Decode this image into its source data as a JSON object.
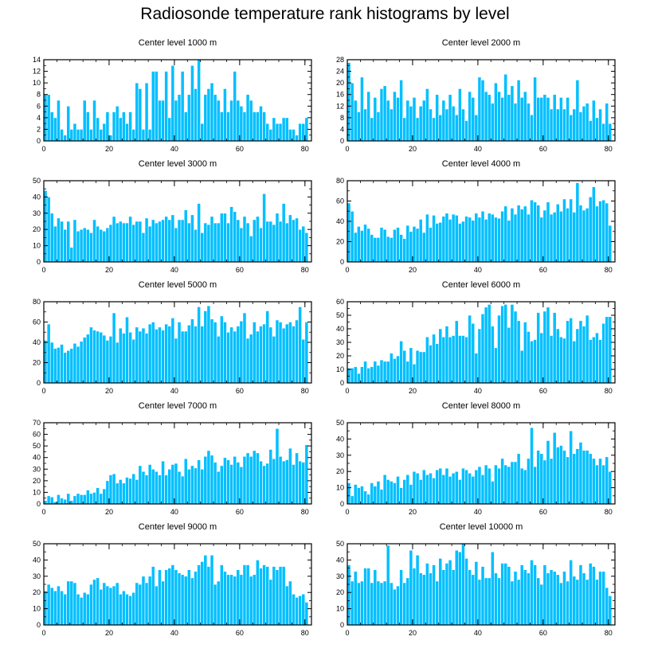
{
  "title": "Radiosonde temperature rank histograms by level",
  "colors": {
    "bar": "#00BFFF",
    "bar_edge": "#ffffff",
    "axis": "#000000"
  },
  "chart_data": [
    {
      "type": "bar",
      "title": "Center level 1000 m",
      "xlim": [
        0,
        82
      ],
      "ylim": [
        0,
        14
      ],
      "xticks": [
        0,
        20,
        40,
        60,
        80
      ],
      "yticks": [
        0,
        2,
        4,
        6,
        8,
        10,
        12,
        14
      ],
      "values": [
        8,
        8,
        5,
        4,
        7,
        2,
        1,
        6,
        2,
        3,
        2,
        2,
        7,
        5,
        2,
        7,
        4,
        2,
        3,
        5,
        1,
        5,
        6,
        4,
        5,
        3,
        5,
        2,
        10,
        9,
        2,
        10,
        2,
        12,
        12,
        7,
        7,
        12,
        4,
        13,
        7,
        8,
        12,
        5,
        8,
        13,
        9,
        14,
        3,
        8,
        9,
        10,
        8,
        7,
        5,
        9,
        5,
        7,
        12,
        7,
        6,
        5,
        8,
        7,
        5,
        5,
        6,
        5,
        3,
        2,
        4,
        3,
        3,
        4,
        4,
        2,
        2,
        1,
        3,
        3,
        4
      ]
    },
    {
      "type": "bar",
      "title": "Center level 2000 m",
      "xlim": [
        0,
        82
      ],
      "ylim": [
        0,
        28
      ],
      "xticks": [
        0,
        20,
        40,
        60,
        80
      ],
      "yticks": [
        0,
        4,
        8,
        12,
        16,
        20,
        24,
        28
      ],
      "values": [
        27,
        20,
        14,
        10,
        22,
        11,
        17,
        8,
        15,
        10,
        18,
        19,
        14,
        11,
        17,
        15,
        21,
        8,
        14,
        12,
        15,
        8,
        12,
        14,
        18,
        11,
        8,
        16,
        9,
        14,
        11,
        16,
        12,
        9,
        18,
        11,
        7,
        17,
        15,
        9,
        22,
        21,
        17,
        16,
        13,
        20,
        17,
        15,
        23,
        16,
        19,
        13,
        21,
        15,
        17,
        13,
        9,
        22,
        15,
        15,
        16,
        15,
        11,
        16,
        11,
        15,
        11,
        15,
        9,
        11,
        21,
        10,
        12,
        13,
        7,
        14,
        8,
        11,
        6,
        13,
        6
      ]
    },
    {
      "type": "bar",
      "title": "Center level 3000 m",
      "xlim": [
        0,
        82
      ],
      "ylim": [
        0,
        50
      ],
      "xticks": [
        0,
        20,
        40,
        60,
        80
      ],
      "yticks": [
        0,
        10,
        20,
        30,
        40,
        50
      ],
      "values": [
        44,
        40,
        30,
        22,
        27,
        25,
        20,
        25,
        9,
        26,
        19,
        20,
        21,
        20,
        18,
        26,
        22,
        20,
        19,
        21,
        23,
        28,
        24,
        25,
        24,
        24,
        28,
        23,
        25,
        25,
        18,
        27,
        22,
        26,
        24,
        25,
        26,
        28,
        26,
        29,
        21,
        26,
        26,
        32,
        24,
        29,
        20,
        36,
        18,
        24,
        23,
        28,
        24,
        24,
        30,
        30,
        24,
        34,
        31,
        26,
        21,
        28,
        24,
        16,
        26,
        28,
        21,
        42,
        25,
        25,
        23,
        30,
        25,
        36,
        24,
        29,
        26,
        27,
        20,
        22,
        18
      ]
    },
    {
      "type": "bar",
      "title": "Center level 4000 m",
      "xlim": [
        0,
        82
      ],
      "ylim": [
        0,
        80
      ],
      "xticks": [
        0,
        20,
        40,
        60,
        80
      ],
      "yticks": [
        0,
        20,
        40,
        60,
        80
      ],
      "values": [
        58,
        50,
        29,
        35,
        31,
        37,
        33,
        27,
        24,
        24,
        34,
        32,
        25,
        24,
        32,
        34,
        27,
        23,
        36,
        30,
        35,
        33,
        42,
        29,
        47,
        34,
        46,
        38,
        39,
        45,
        48,
        42,
        47,
        46,
        38,
        40,
        45,
        44,
        41,
        48,
        44,
        50,
        42,
        48,
        47,
        44,
        43,
        50,
        55,
        41,
        53,
        47,
        56,
        52,
        55,
        47,
        61,
        59,
        56,
        44,
        51,
        59,
        47,
        49,
        57,
        50,
        62,
        53,
        62,
        49,
        78,
        56,
        51,
        53,
        64,
        74,
        55,
        60,
        61,
        58,
        36
      ]
    },
    {
      "type": "bar",
      "title": "Center level 5000 m",
      "xlim": [
        0,
        82
      ],
      "ylim": [
        0,
        80
      ],
      "xticks": [
        0,
        20,
        40,
        60,
        80
      ],
      "yticks": [
        0,
        20,
        40,
        60,
        80
      ],
      "values": [
        42,
        58,
        40,
        34,
        35,
        38,
        30,
        32,
        34,
        39,
        36,
        41,
        45,
        48,
        55,
        52,
        51,
        50,
        47,
        42,
        46,
        69,
        40,
        54,
        49,
        65,
        50,
        43,
        55,
        51,
        54,
        49,
        58,
        60,
        53,
        55,
        52,
        58,
        56,
        64,
        44,
        60,
        51,
        51,
        57,
        63,
        56,
        75,
        56,
        71,
        76,
        63,
        60,
        46,
        66,
        60,
        50,
        55,
        51,
        56,
        61,
        69,
        44,
        48,
        60,
        51,
        56,
        58,
        71,
        55,
        46,
        62,
        60,
        54,
        58,
        60,
        56,
        62,
        75,
        43,
        60
      ]
    },
    {
      "type": "bar",
      "title": "Center level 6000 m",
      "xlim": [
        0,
        82
      ],
      "ylim": [
        0,
        60
      ],
      "xticks": [
        0,
        20,
        40,
        60,
        80
      ],
      "yticks": [
        0,
        10,
        20,
        30,
        40,
        50,
        60
      ],
      "values": [
        11,
        11,
        12,
        7,
        12,
        16,
        11,
        12,
        16,
        13,
        17,
        16,
        16,
        22,
        18,
        20,
        31,
        24,
        16,
        26,
        14,
        24,
        23,
        23,
        34,
        28,
        36,
        29,
        40,
        34,
        42,
        34,
        35,
        46,
        35,
        35,
        34,
        50,
        44,
        22,
        40,
        51,
        56,
        58,
        42,
        26,
        50,
        57,
        58,
        41,
        58,
        53,
        46,
        24,
        45,
        38,
        31,
        32,
        52,
        37,
        53,
        56,
        35,
        52,
        40,
        34,
        33,
        46,
        48,
        31,
        40,
        46,
        42,
        50,
        32,
        34,
        37,
        32,
        44,
        49,
        49
      ]
    },
    {
      "type": "bar",
      "title": "Center level 7000 m",
      "xlim": [
        0,
        82
      ],
      "ylim": [
        0,
        70
      ],
      "xticks": [
        0,
        20,
        40,
        60,
        80
      ],
      "yticks": [
        0,
        10,
        20,
        30,
        40,
        50,
        60,
        70
      ],
      "values": [
        3,
        7,
        6,
        2,
        8,
        5,
        4,
        9,
        3,
        7,
        9,
        8,
        8,
        12,
        9,
        10,
        14,
        9,
        13,
        20,
        25,
        26,
        18,
        21,
        18,
        23,
        22,
        26,
        21,
        33,
        28,
        25,
        34,
        30,
        28,
        25,
        37,
        25,
        30,
        34,
        35,
        28,
        24,
        39,
        30,
        33,
        31,
        38,
        30,
        41,
        46,
        42,
        36,
        28,
        33,
        40,
        38,
        34,
        41,
        36,
        32,
        41,
        44,
        41,
        46,
        44,
        37,
        33,
        35,
        47,
        39,
        65,
        41,
        37,
        38,
        48,
        34,
        44,
        37,
        36,
        51
      ]
    },
    {
      "type": "bar",
      "title": "Center level 8000 m",
      "xlim": [
        0,
        82
      ],
      "ylim": [
        0,
        50
      ],
      "xticks": [
        0,
        20,
        40,
        60,
        80
      ],
      "yticks": [
        0,
        10,
        20,
        30,
        40,
        50
      ],
      "values": [
        13,
        5,
        12,
        10,
        11,
        8,
        6,
        13,
        11,
        14,
        9,
        18,
        15,
        14,
        13,
        17,
        10,
        15,
        18,
        12,
        20,
        19,
        15,
        21,
        18,
        19,
        16,
        21,
        22,
        18,
        22,
        17,
        19,
        20,
        15,
        22,
        21,
        19,
        17,
        21,
        23,
        18,
        24,
        22,
        14,
        24,
        22,
        28,
        24,
        23,
        26,
        26,
        31,
        22,
        21,
        28,
        47,
        23,
        33,
        31,
        27,
        39,
        28,
        44,
        35,
        36,
        33,
        29,
        45,
        31,
        34,
        38,
        33,
        33,
        31,
        28,
        24,
        28,
        24,
        29,
        20
      ]
    },
    {
      "type": "bar",
      "title": "Center level 9000 m",
      "xlim": [
        0,
        82
      ],
      "ylim": [
        0,
        50
      ],
      "xticks": [
        0,
        20,
        40,
        60,
        80
      ],
      "yticks": [
        0,
        10,
        20,
        30,
        40,
        50
      ],
      "values": [
        21,
        25,
        23,
        21,
        24,
        21,
        19,
        27,
        27,
        26,
        19,
        17,
        20,
        19,
        25,
        28,
        29,
        22,
        26,
        24,
        23,
        24,
        26,
        19,
        21,
        19,
        18,
        20,
        26,
        25,
        30,
        26,
        30,
        36,
        24,
        34,
        27,
        34,
        35,
        37,
        34,
        32,
        31,
        30,
        34,
        29,
        33,
        37,
        39,
        43,
        36,
        43,
        25,
        27,
        37,
        33,
        31,
        31,
        30,
        34,
        31,
        37,
        37,
        30,
        31,
        40,
        35,
        37,
        36,
        28,
        36,
        34,
        36,
        36,
        24,
        27,
        19,
        17,
        18,
        19,
        14
      ]
    },
    {
      "type": "bar",
      "title": "Center level 10000 m",
      "xlim": [
        0,
        82
      ],
      "ylim": [
        0,
        50
      ],
      "xticks": [
        0,
        20,
        40,
        60,
        80
      ],
      "yticks": [
        0,
        10,
        20,
        30,
        40,
        50
      ],
      "values": [
        37,
        27,
        33,
        26,
        27,
        35,
        35,
        26,
        34,
        27,
        26,
        27,
        49,
        26,
        22,
        24,
        34,
        26,
        29,
        46,
        35,
        43,
        32,
        31,
        38,
        32,
        37,
        27,
        41,
        34,
        38,
        40,
        34,
        46,
        45,
        50,
        41,
        34,
        31,
        39,
        28,
        36,
        29,
        29,
        45,
        32,
        29,
        38,
        38,
        36,
        27,
        33,
        28,
        37,
        34,
        32,
        40,
        37,
        29,
        25,
        37,
        32,
        34,
        33,
        31,
        26,
        33,
        27,
        40,
        30,
        28,
        37,
        32,
        28,
        38,
        36,
        28,
        33,
        33,
        23,
        18
      ]
    }
  ]
}
